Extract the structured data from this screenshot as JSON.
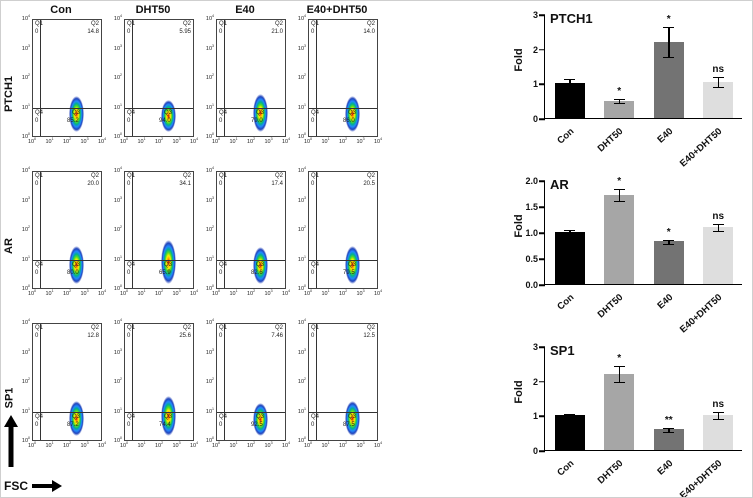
{
  "flow": {
    "col_headers": [
      "Con",
      "DHT50",
      "E40",
      "E40+DHT50"
    ],
    "row_labels": [
      "PTCH1",
      "AR",
      "SP1"
    ],
    "x_axis_label": "FSC",
    "quadrants": [
      "Q1",
      "Q2",
      "Q3",
      "Q4"
    ],
    "axis_tick_exponents": [
      "0",
      "1",
      "2",
      "3",
      "4"
    ],
    "density_palette": [
      "#cc0000",
      "#ff9900",
      "#ffee00",
      "#55dd22",
      "#00b090",
      "#2288ff",
      "#2244bb"
    ],
    "rows": [
      {
        "label": "PTCH1",
        "plots": [
          {
            "q1": "0",
            "q2": "14.8",
            "q3": "85.2",
            "q4": "0"
          },
          {
            "q1": "0",
            "q2": "5.95",
            "q3": "94.0",
            "q4": "0"
          },
          {
            "q1": "0",
            "q2": "21.0",
            "q3": "79.0",
            "q4": "0"
          },
          {
            "q1": "0",
            "q2": "14.0",
            "q3": "86.0",
            "q4": "0"
          }
        ]
      },
      {
        "label": "AR",
        "plots": [
          {
            "q1": "0",
            "q2": "20.0",
            "q3": "80.0",
            "q4": "0"
          },
          {
            "q1": "0",
            "q2": "34.1",
            "q3": "65.9",
            "q4": "0"
          },
          {
            "q1": "0",
            "q2": "17.4",
            "q3": "82.6",
            "q4": "0"
          },
          {
            "q1": "0",
            "q2": "20.5",
            "q3": "79.5",
            "q4": "0"
          }
        ]
      },
      {
        "label": "SP1",
        "plots": [
          {
            "q1": "0",
            "q2": "12.8",
            "q3": "87.2",
            "q4": "0"
          },
          {
            "q1": "0",
            "q2": "25.6",
            "q3": "74.4",
            "q4": "0"
          },
          {
            "q1": "0",
            "q2": "7.46",
            "q3": "92.5",
            "q4": "0"
          },
          {
            "q1": "0",
            "q2": "12.5",
            "q3": "87.5",
            "q4": "0"
          }
        ]
      }
    ]
  },
  "chart_data": [
    {
      "type": "bar",
      "title": "PTCH1",
      "ylabel": "Fold",
      "categories": [
        "Con",
        "DHT50",
        "E40",
        "E40+DHT50"
      ],
      "values": [
        1.0,
        0.5,
        2.2,
        1.05
      ],
      "errors": [
        0.15,
        0.08,
        0.45,
        0.15
      ],
      "annotations": [
        "",
        "*",
        "*",
        "ns"
      ],
      "ylim": [
        0,
        3
      ],
      "yticks": [
        0,
        1,
        2,
        3
      ],
      "ytick_labels": [
        "0",
        "1",
        "2",
        "3"
      ],
      "bar_colors": [
        "#000000",
        "#a6a6a6",
        "#737373",
        "#dedede"
      ]
    },
    {
      "type": "bar",
      "title": "AR",
      "ylabel": "Fold",
      "categories": [
        "Con",
        "DHT50",
        "E40",
        "E40+DHT50"
      ],
      "values": [
        1.0,
        1.72,
        0.82,
        1.1
      ],
      "errors": [
        0.06,
        0.12,
        0.05,
        0.08
      ],
      "annotations": [
        "",
        "*",
        "*",
        "ns"
      ],
      "ylim": [
        0,
        2
      ],
      "yticks": [
        0,
        0.5,
        1,
        1.5,
        2
      ],
      "ytick_labels": [
        "0.0",
        "0.5",
        "1.0",
        "1.5",
        "2.0"
      ],
      "bar_colors": [
        "#000000",
        "#a6a6a6",
        "#737373",
        "#dedede"
      ]
    },
    {
      "type": "bar",
      "title": "SP1",
      "ylabel": "Fold",
      "categories": [
        "Con",
        "DHT50",
        "E40",
        "E40+DHT50"
      ],
      "values": [
        1.0,
        2.2,
        0.6,
        1.0
      ],
      "errors": [
        0.06,
        0.25,
        0.07,
        0.12
      ],
      "annotations": [
        "",
        "*",
        "**",
        "ns"
      ],
      "ylim": [
        0,
        3
      ],
      "yticks": [
        0,
        1,
        2,
        3
      ],
      "ytick_labels": [
        "0",
        "1",
        "2",
        "3"
      ],
      "bar_colors": [
        "#000000",
        "#a6a6a6",
        "#737373",
        "#dedede"
      ]
    }
  ]
}
